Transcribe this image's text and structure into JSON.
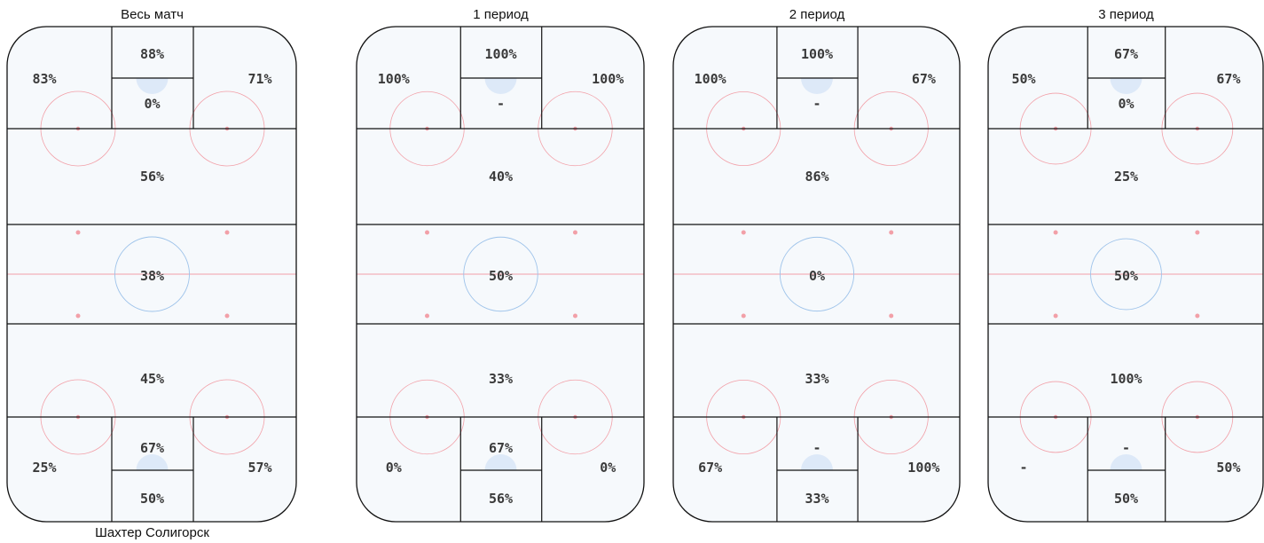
{
  "rinks": [
    {
      "title": "Весь матч",
      "footer": "Шахтер Солигорск",
      "zones": {
        "top_left": "83%",
        "top_crease_upper": "88%",
        "top_crease_lower": "0%",
        "top_right": "71%",
        "upper_mid": "56%",
        "center": "38%",
        "lower_mid": "45%",
        "bottom_left": "25%",
        "bottom_crease_upper": "67%",
        "bottom_crease_lower": "50%",
        "bottom_right": "57%"
      }
    },
    {
      "title": "1 период",
      "footer": "",
      "zones": {
        "top_left": "100%",
        "top_crease_upper": "100%",
        "top_crease_lower": "-",
        "top_right": "100%",
        "upper_mid": "40%",
        "center": "50%",
        "lower_mid": "33%",
        "bottom_left": "0%",
        "bottom_crease_upper": "67%",
        "bottom_crease_lower": "56%",
        "bottom_right": "0%"
      }
    },
    {
      "title": "2 период",
      "footer": "",
      "zones": {
        "top_left": "100%",
        "top_crease_upper": "100%",
        "top_crease_lower": "-",
        "top_right": "67%",
        "upper_mid": "86%",
        "center": "0%",
        "lower_mid": "33%",
        "bottom_left": "67%",
        "bottom_crease_upper": "-",
        "bottom_crease_lower": "33%",
        "bottom_right": "100%"
      }
    },
    {
      "title": "3 период",
      "footer": "",
      "zones": {
        "top_left": "50%",
        "top_crease_upper": "67%",
        "top_crease_lower": "0%",
        "top_right": "67%",
        "upper_mid": "25%",
        "center": "50%",
        "lower_mid": "100%",
        "bottom_left": "-",
        "bottom_crease_upper": "-",
        "bottom_crease_lower": "50%",
        "bottom_right": "50%"
      }
    }
  ],
  "colors": {
    "rink_fill": "#f6f9fc",
    "border": "#111111",
    "red_line": "#f2a0a8",
    "blue_circle": "#9ec3ea",
    "crease": "#dde9f8",
    "text": "#3a3a3a"
  }
}
